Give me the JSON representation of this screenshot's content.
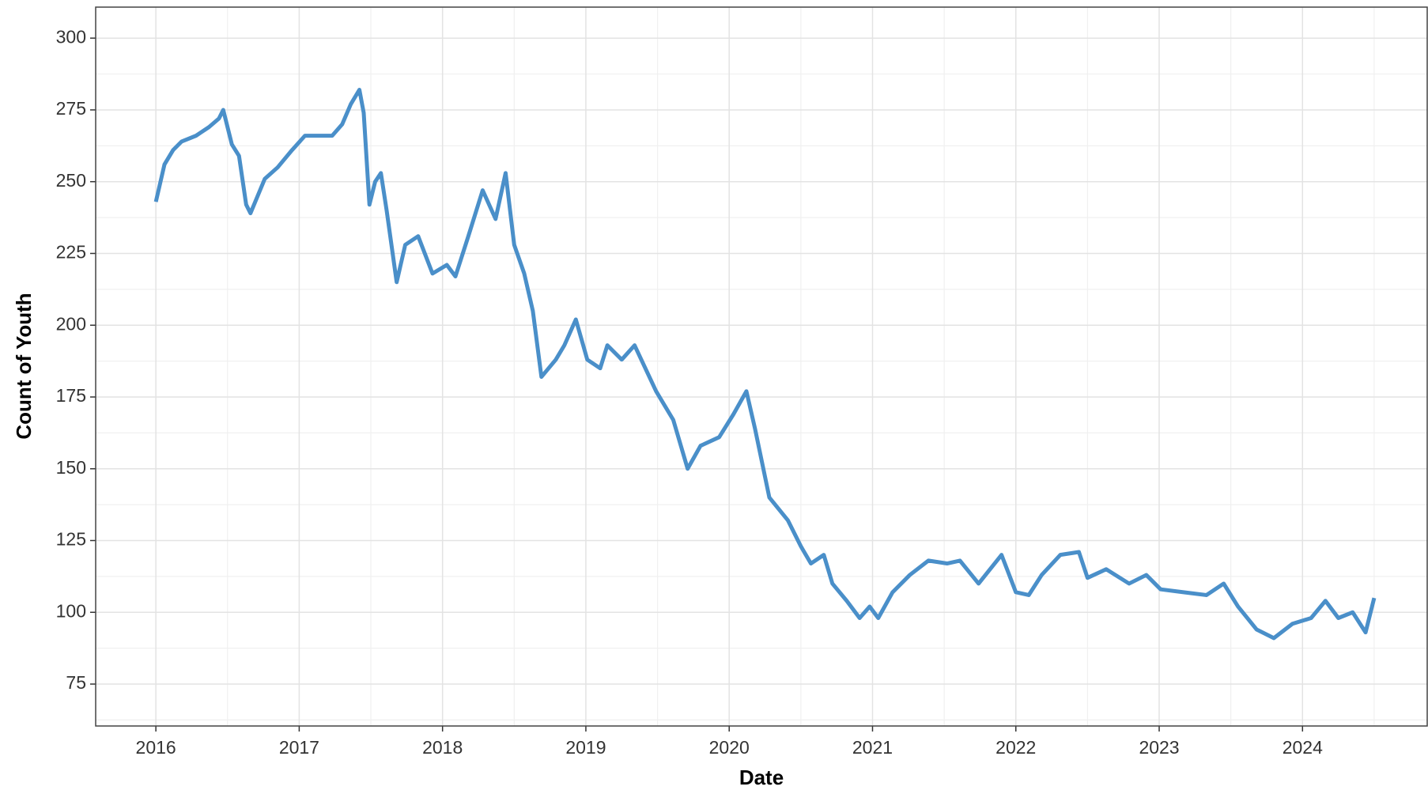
{
  "chart_data": {
    "type": "line",
    "xlabel": "Date",
    "ylabel": "Count of Youth",
    "x": [
      2016.0,
      2016.06,
      2016.12,
      2016.18,
      2016.28,
      2016.37,
      2016.44,
      2016.47,
      2016.53,
      2016.58,
      2016.63,
      2016.66,
      2016.76,
      2016.85,
      2016.95,
      2017.04,
      2017.14,
      2017.23,
      2017.3,
      2017.36,
      2017.42,
      2017.45,
      2017.49,
      2017.53,
      2017.57,
      2017.61,
      2017.68,
      2017.74,
      2017.83,
      2017.93,
      2018.03,
      2018.09,
      2018.18,
      2018.28,
      2018.37,
      2018.44,
      2018.5,
      2018.57,
      2018.63,
      2018.69,
      2018.79,
      2018.85,
      2018.93,
      2019.01,
      2019.1,
      2019.15,
      2019.25,
      2019.34,
      2019.49,
      2019.61,
      2019.71,
      2019.8,
      2019.93,
      2020.03,
      2020.12,
      2020.18,
      2020.28,
      2020.41,
      2020.5,
      2020.57,
      2020.66,
      2020.72,
      2020.82,
      2020.91,
      2020.98,
      2021.04,
      2021.14,
      2021.26,
      2021.39,
      2021.52,
      2021.61,
      2021.74,
      2021.9,
      2022.0,
      2022.09,
      2022.18,
      2022.31,
      2022.44,
      2022.5,
      2022.63,
      2022.79,
      2022.91,
      2023.01,
      2023.17,
      2023.33,
      2023.45,
      2023.55,
      2023.68,
      2023.8,
      2023.93,
      2024.06,
      2024.16,
      2024.25,
      2024.35,
      2024.44,
      2024.5
    ],
    "series": [
      {
        "name": "Count of Youth",
        "color": "#4a8fc9",
        "values": [
          243,
          256,
          261,
          264,
          266,
          269,
          272,
          275,
          263,
          259,
          242,
          239,
          251,
          255,
          261,
          266,
          266,
          266,
          270,
          277,
          282,
          274,
          242,
          250,
          253,
          240,
          215,
          228,
          231,
          218,
          221,
          217,
          231,
          247,
          237,
          253,
          228,
          218,
          205,
          182,
          188,
          193,
          202,
          188,
          185,
          193,
          188,
          193,
          177,
          167,
          150,
          158,
          161,
          169,
          177,
          164,
          140,
          132,
          123,
          117,
          120,
          110,
          104,
          98,
          102,
          98,
          107,
          113,
          118,
          117,
          118,
          110,
          120,
          107,
          106,
          113,
          120,
          121,
          112,
          115,
          110,
          113,
          108,
          107,
          106,
          110,
          102,
          94,
          91,
          96,
          98,
          104,
          98,
          100,
          93,
          105
        ]
      }
    ],
    "xlim": [
      2015.58,
      2024.87
    ],
    "xticks": [
      2016,
      2017,
      2018,
      2019,
      2020,
      2021,
      2022,
      2023,
      2024
    ],
    "ylim": [
      60.4,
      310.8
    ],
    "yticks": [
      75,
      100,
      125,
      150,
      175,
      200,
      225,
      250,
      275,
      300
    ],
    "grid": true
  }
}
